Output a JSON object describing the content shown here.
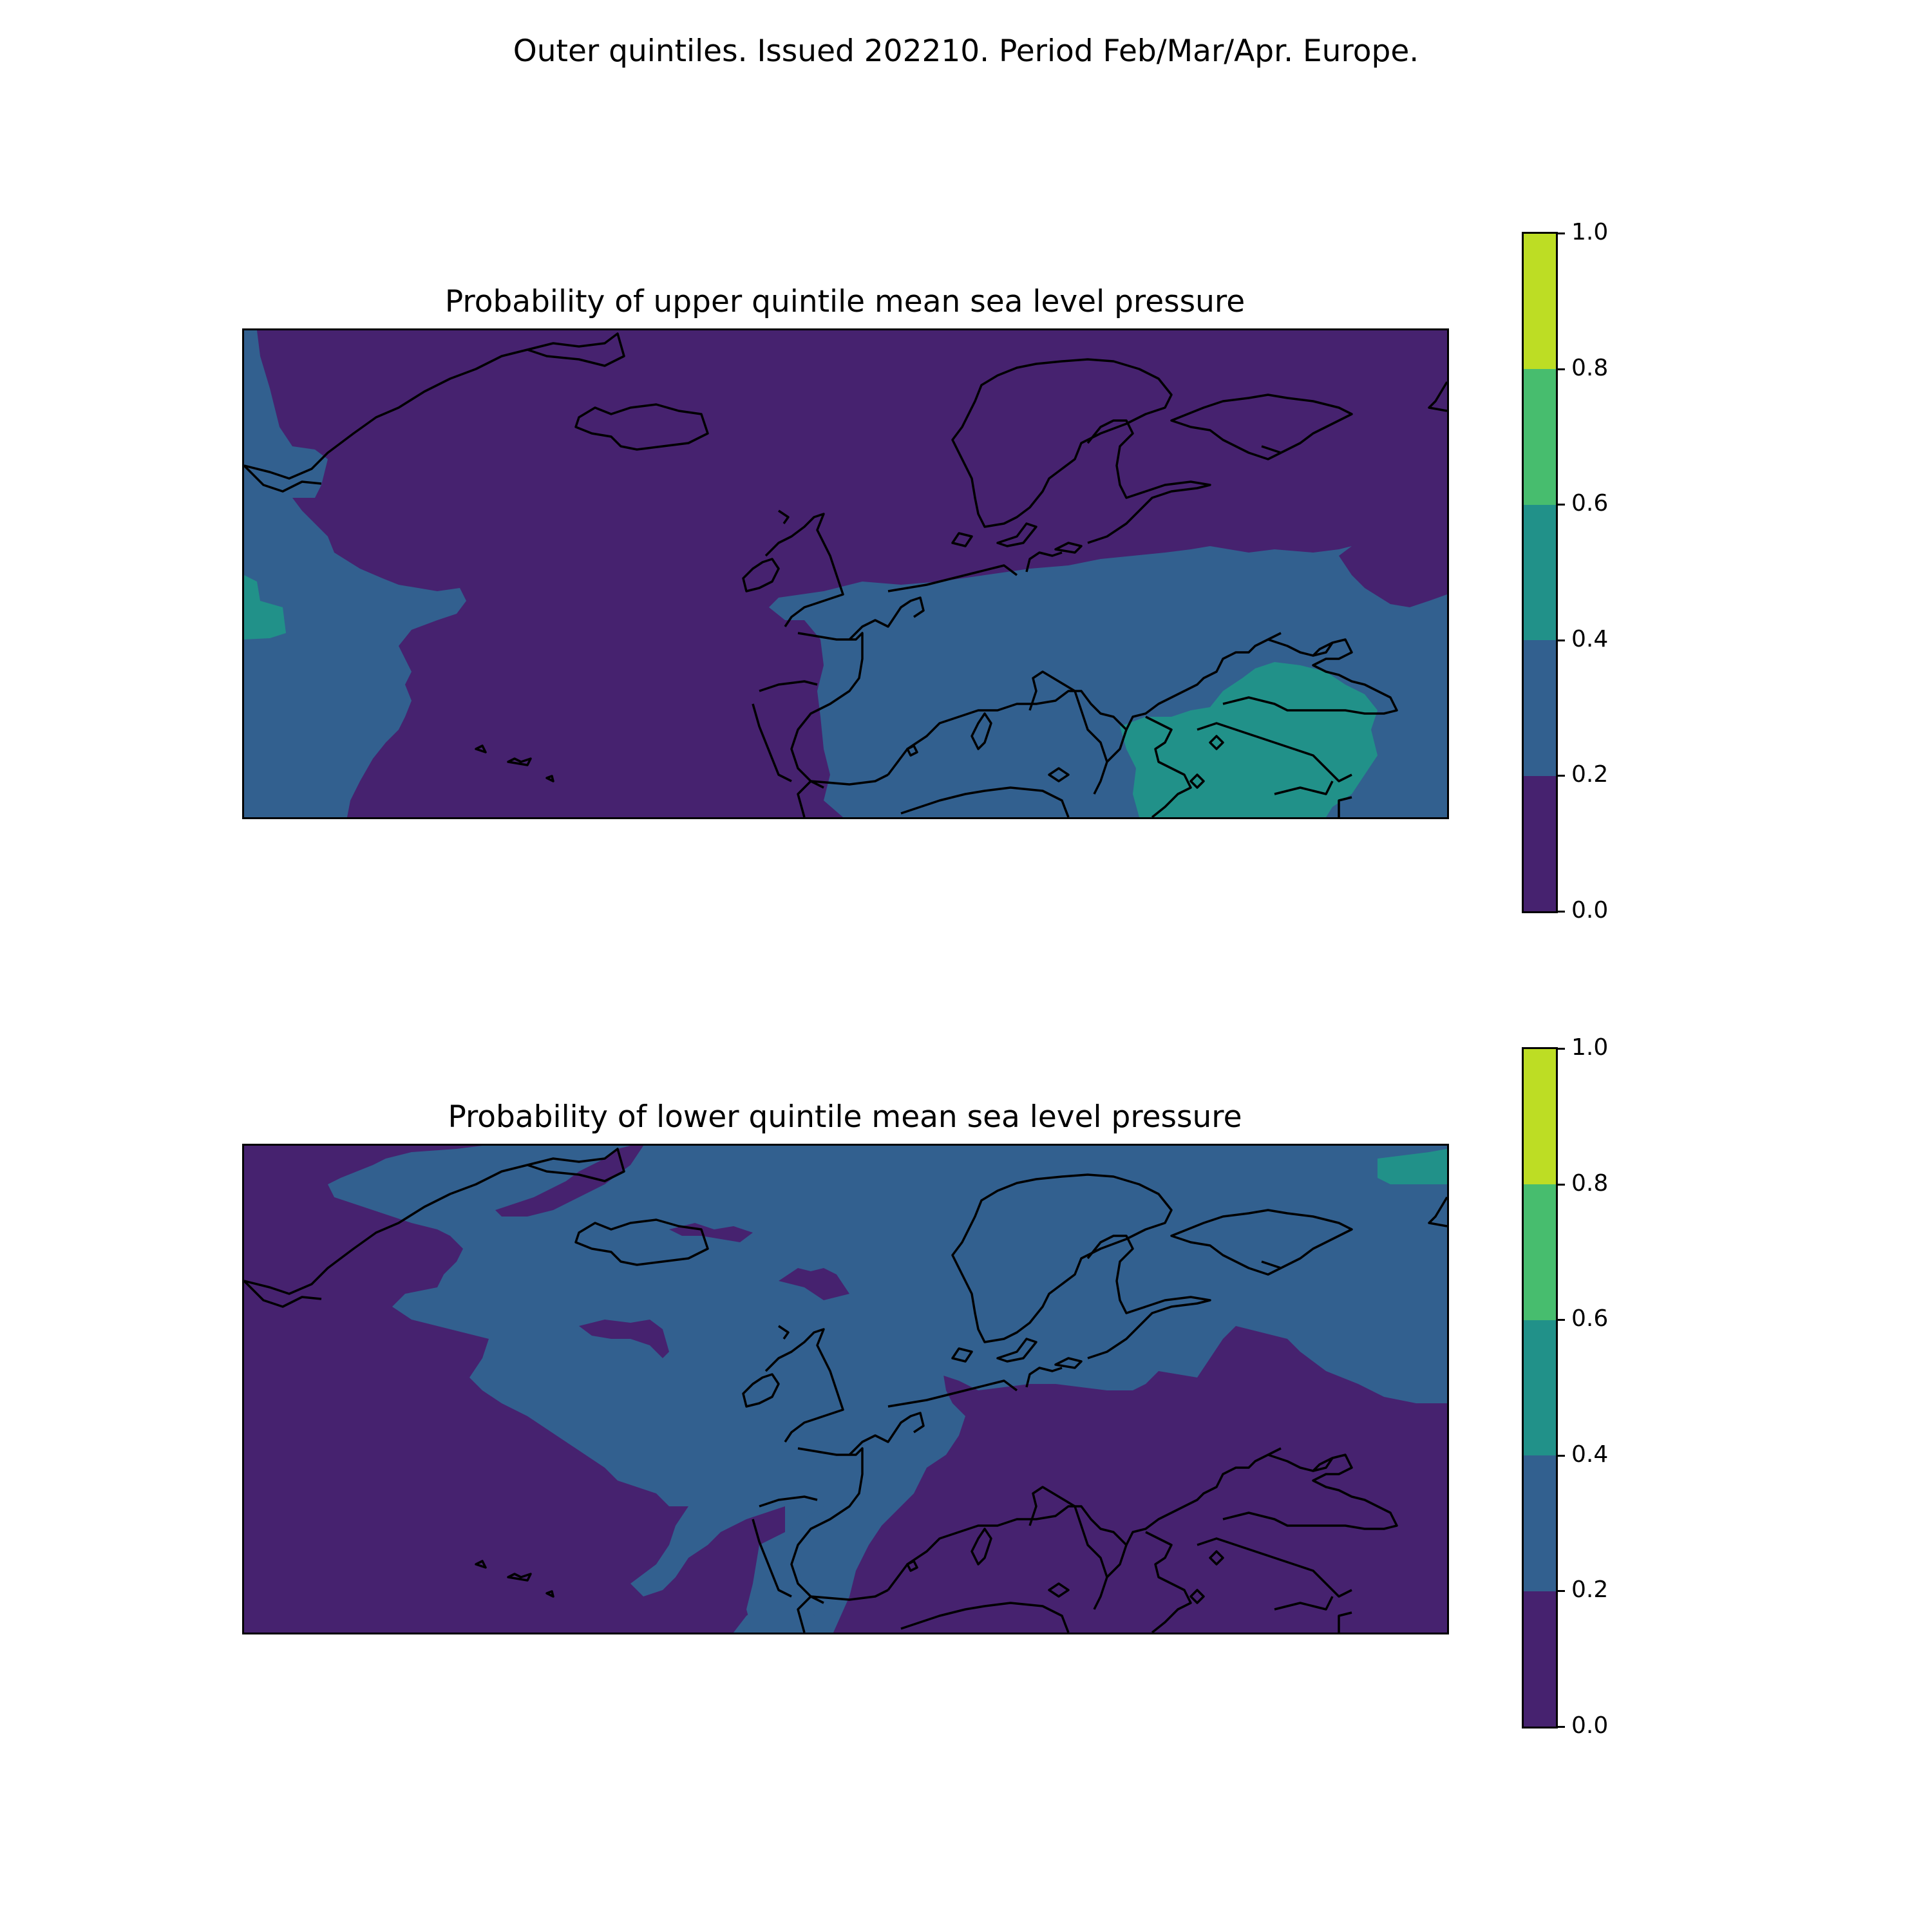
{
  "figure_title": "Outer quintiles. Issued 202210. Period Feb/Mar/Apr. Europe.",
  "colormap": [
    "#440154",
    "#3b528b",
    "#21918c",
    "#5ec962",
    "#fde725"
  ],
  "chart_data": [
    {
      "type": "heatmap",
      "title": "Probability of upper quintile mean sea level pressure",
      "levels": [
        0.0,
        0.2,
        0.4,
        0.6,
        0.8,
        1.0
      ],
      "level_colors": [
        "#46226f",
        "#32608f",
        "#219189",
        "#47bd6e",
        "#bddd24"
      ],
      "colorbar_ticks": [
        "0.0",
        "0.2",
        "0.4",
        "0.6",
        "0.8",
        "1.0"
      ],
      "region": "Europe",
      "dominant_band": "0.0-0.2",
      "features": [
        {
          "area": "western Atlantic",
          "band": "0.2-0.4"
        },
        {
          "area": "far west edge",
          "band": "0.4-0.6"
        },
        {
          "area": "central/southern Europe and Mediterranean",
          "band": "0.2-0.4"
        },
        {
          "area": "Balkans, Turkey, Black Sea",
          "band": "0.4-0.6"
        }
      ]
    },
    {
      "type": "heatmap",
      "title": "Probability of lower quintile mean sea level pressure",
      "levels": [
        0.0,
        0.2,
        0.4,
        0.6,
        0.8,
        1.0
      ],
      "level_colors": [
        "#46226f",
        "#32608f",
        "#219189",
        "#47bd6e",
        "#bddd24"
      ],
      "colorbar_ticks": [
        "0.0",
        "0.2",
        "0.4",
        "0.6",
        "0.8",
        "1.0"
      ],
      "region": "Europe",
      "dominant_band": "0.0-0.2",
      "features": [
        {
          "area": "north Atlantic, Iceland, British Isles, Scandinavia, Russia",
          "band": "0.2-0.4"
        },
        {
          "area": "far northeast corner",
          "band": "0.4-0.6"
        },
        {
          "area": "southern Europe, Mediterranean, western Atlantic",
          "band": "0.0-0.2"
        }
      ]
    }
  ]
}
